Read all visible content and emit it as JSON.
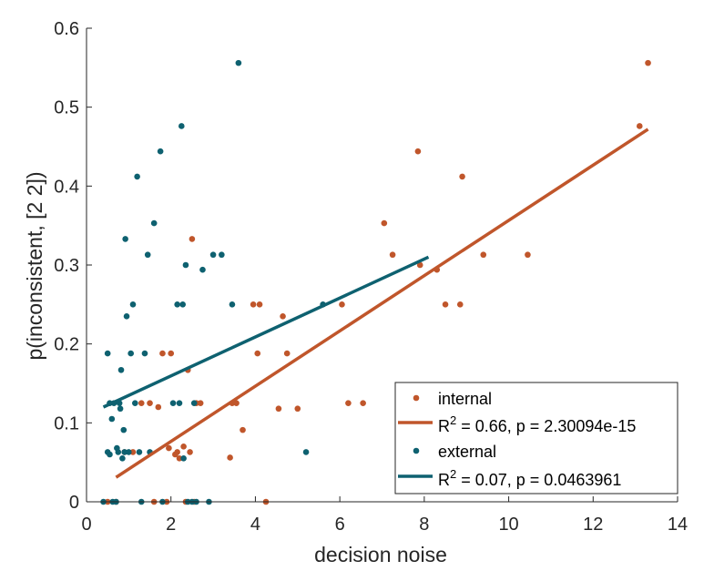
{
  "chart_data": {
    "type": "scatter",
    "xlabel": "decision noise",
    "ylabel": "p(inconsistent, [2 2])",
    "xlim": [
      0,
      14
    ],
    "ylim": [
      0,
      0.6
    ],
    "x_ticks": [
      0,
      2,
      4,
      6,
      8,
      10,
      12,
      14
    ],
    "y_ticks": [
      0,
      0.1,
      0.2,
      0.3,
      0.4,
      0.5,
      0.6
    ],
    "x_tick_labels": [
      "0",
      "2",
      "4",
      "6",
      "8",
      "10",
      "12",
      "14"
    ],
    "y_tick_labels": [
      "0",
      "0.1",
      "0.2",
      "0.3",
      "0.4",
      "0.5",
      "0.6"
    ],
    "grid": false,
    "legend_position": "bottom-right",
    "series": [
      {
        "name": "internal",
        "color": "#c0562b",
        "points": [
          [
            0.5,
            0
          ],
          [
            0.7,
            0
          ],
          [
            0.9,
            0.063
          ],
          [
            1.1,
            0.063
          ],
          [
            1.3,
            0.125
          ],
          [
            1.5,
            0.125
          ],
          [
            1.6,
            0
          ],
          [
            1.7,
            0.12
          ],
          [
            1.8,
            0.188
          ],
          [
            1.9,
            0
          ],
          [
            1.95,
            0.068
          ],
          [
            2.0,
            0.188
          ],
          [
            2.1,
            0.06
          ],
          [
            2.15,
            0.063
          ],
          [
            2.2,
            0.055
          ],
          [
            2.3,
            0.07
          ],
          [
            2.35,
            0
          ],
          [
            2.4,
            0.167
          ],
          [
            2.45,
            0.063
          ],
          [
            2.5,
            0.333
          ],
          [
            2.55,
            0
          ],
          [
            2.6,
            0.125
          ],
          [
            2.7,
            0.125
          ],
          [
            3.4,
            0.056
          ],
          [
            3.45,
            0.125
          ],
          [
            3.55,
            0.125
          ],
          [
            3.7,
            0.091
          ],
          [
            3.95,
            0.25
          ],
          [
            4.05,
            0.188
          ],
          [
            4.1,
            0.25
          ],
          [
            4.25,
            0
          ],
          [
            4.55,
            0.118
          ],
          [
            4.65,
            0.235
          ],
          [
            4.75,
            0.188
          ],
          [
            5.0,
            0.118
          ],
          [
            6.05,
            0.25
          ],
          [
            6.2,
            0.125
          ],
          [
            6.55,
            0.125
          ],
          [
            7.05,
            0.353
          ],
          [
            7.25,
            0.313
          ],
          [
            7.85,
            0.444
          ],
          [
            7.9,
            0.3
          ],
          [
            8.3,
            0.294
          ],
          [
            8.5,
            0.25
          ],
          [
            8.85,
            0.25
          ],
          [
            8.9,
            0.412
          ],
          [
            9.4,
            0.313
          ],
          [
            10.45,
            0.313
          ],
          [
            13.1,
            0.476
          ],
          [
            13.3,
            0.556
          ]
        ],
        "fit": {
          "x": [
            0.7,
            13.3
          ],
          "y": [
            0.031,
            0.472
          ],
          "label": "R² = 0.66, p = 2.30094e-15"
        }
      },
      {
        "name": "external",
        "color": "#0e6170",
        "points": [
          [
            0.4,
            0
          ],
          [
            0.5,
            0.188
          ],
          [
            0.5,
            0.063
          ],
          [
            0.55,
            0.06
          ],
          [
            0.55,
            0.125
          ],
          [
            0.6,
            0.105
          ],
          [
            0.62,
            0
          ],
          [
            0.65,
            0.125
          ],
          [
            0.7,
            0
          ],
          [
            0.72,
            0.068
          ],
          [
            0.75,
            0.063
          ],
          [
            0.78,
            0.125
          ],
          [
            0.8,
            0.118
          ],
          [
            0.82,
            0.167
          ],
          [
            0.85,
            0.055
          ],
          [
            0.88,
            0.091
          ],
          [
            0.9,
            0.063
          ],
          [
            0.92,
            0.333
          ],
          [
            0.95,
            0.235
          ],
          [
            1.0,
            0.063
          ],
          [
            1.05,
            0.188
          ],
          [
            1.1,
            0.25
          ],
          [
            1.15,
            0.125
          ],
          [
            1.2,
            0.412
          ],
          [
            1.25,
            0.063
          ],
          [
            1.3,
            0
          ],
          [
            1.38,
            0.188
          ],
          [
            1.45,
            0.313
          ],
          [
            1.5,
            0.063
          ],
          [
            1.6,
            0.353
          ],
          [
            1.75,
            0.444
          ],
          [
            1.8,
            0
          ],
          [
            2.05,
            0.125
          ],
          [
            2.15,
            0.25
          ],
          [
            2.2,
            0.125
          ],
          [
            2.25,
            0.476
          ],
          [
            2.28,
            0.25
          ],
          [
            2.3,
            0.055
          ],
          [
            2.35,
            0.3
          ],
          [
            2.4,
            0
          ],
          [
            2.5,
            0
          ],
          [
            2.55,
            0.125
          ],
          [
            2.6,
            0
          ],
          [
            2.75,
            0.294
          ],
          [
            2.9,
            0
          ],
          [
            3.0,
            0.313
          ],
          [
            3.2,
            0.313
          ],
          [
            3.45,
            0.25
          ],
          [
            3.6,
            0.556
          ],
          [
            5.2,
            0.063
          ],
          [
            5.6,
            0.25
          ]
        ],
        "fit": {
          "x": [
            0.4,
            8.1
          ],
          "y": [
            0.12,
            0.31
          ],
          "label": "R² = 0.07, p = 0.0463961"
        }
      }
    ]
  },
  "legend": {
    "internal_label": "internal",
    "internal_fit_prefix": "R",
    "internal_fit_rest": " = 0.66, p  = 2.30094e-15",
    "external_label": "external",
    "external_fit_prefix": "R",
    "external_fit_rest": " = 0.07, p  = 0.0463961",
    "superscript": "2"
  }
}
